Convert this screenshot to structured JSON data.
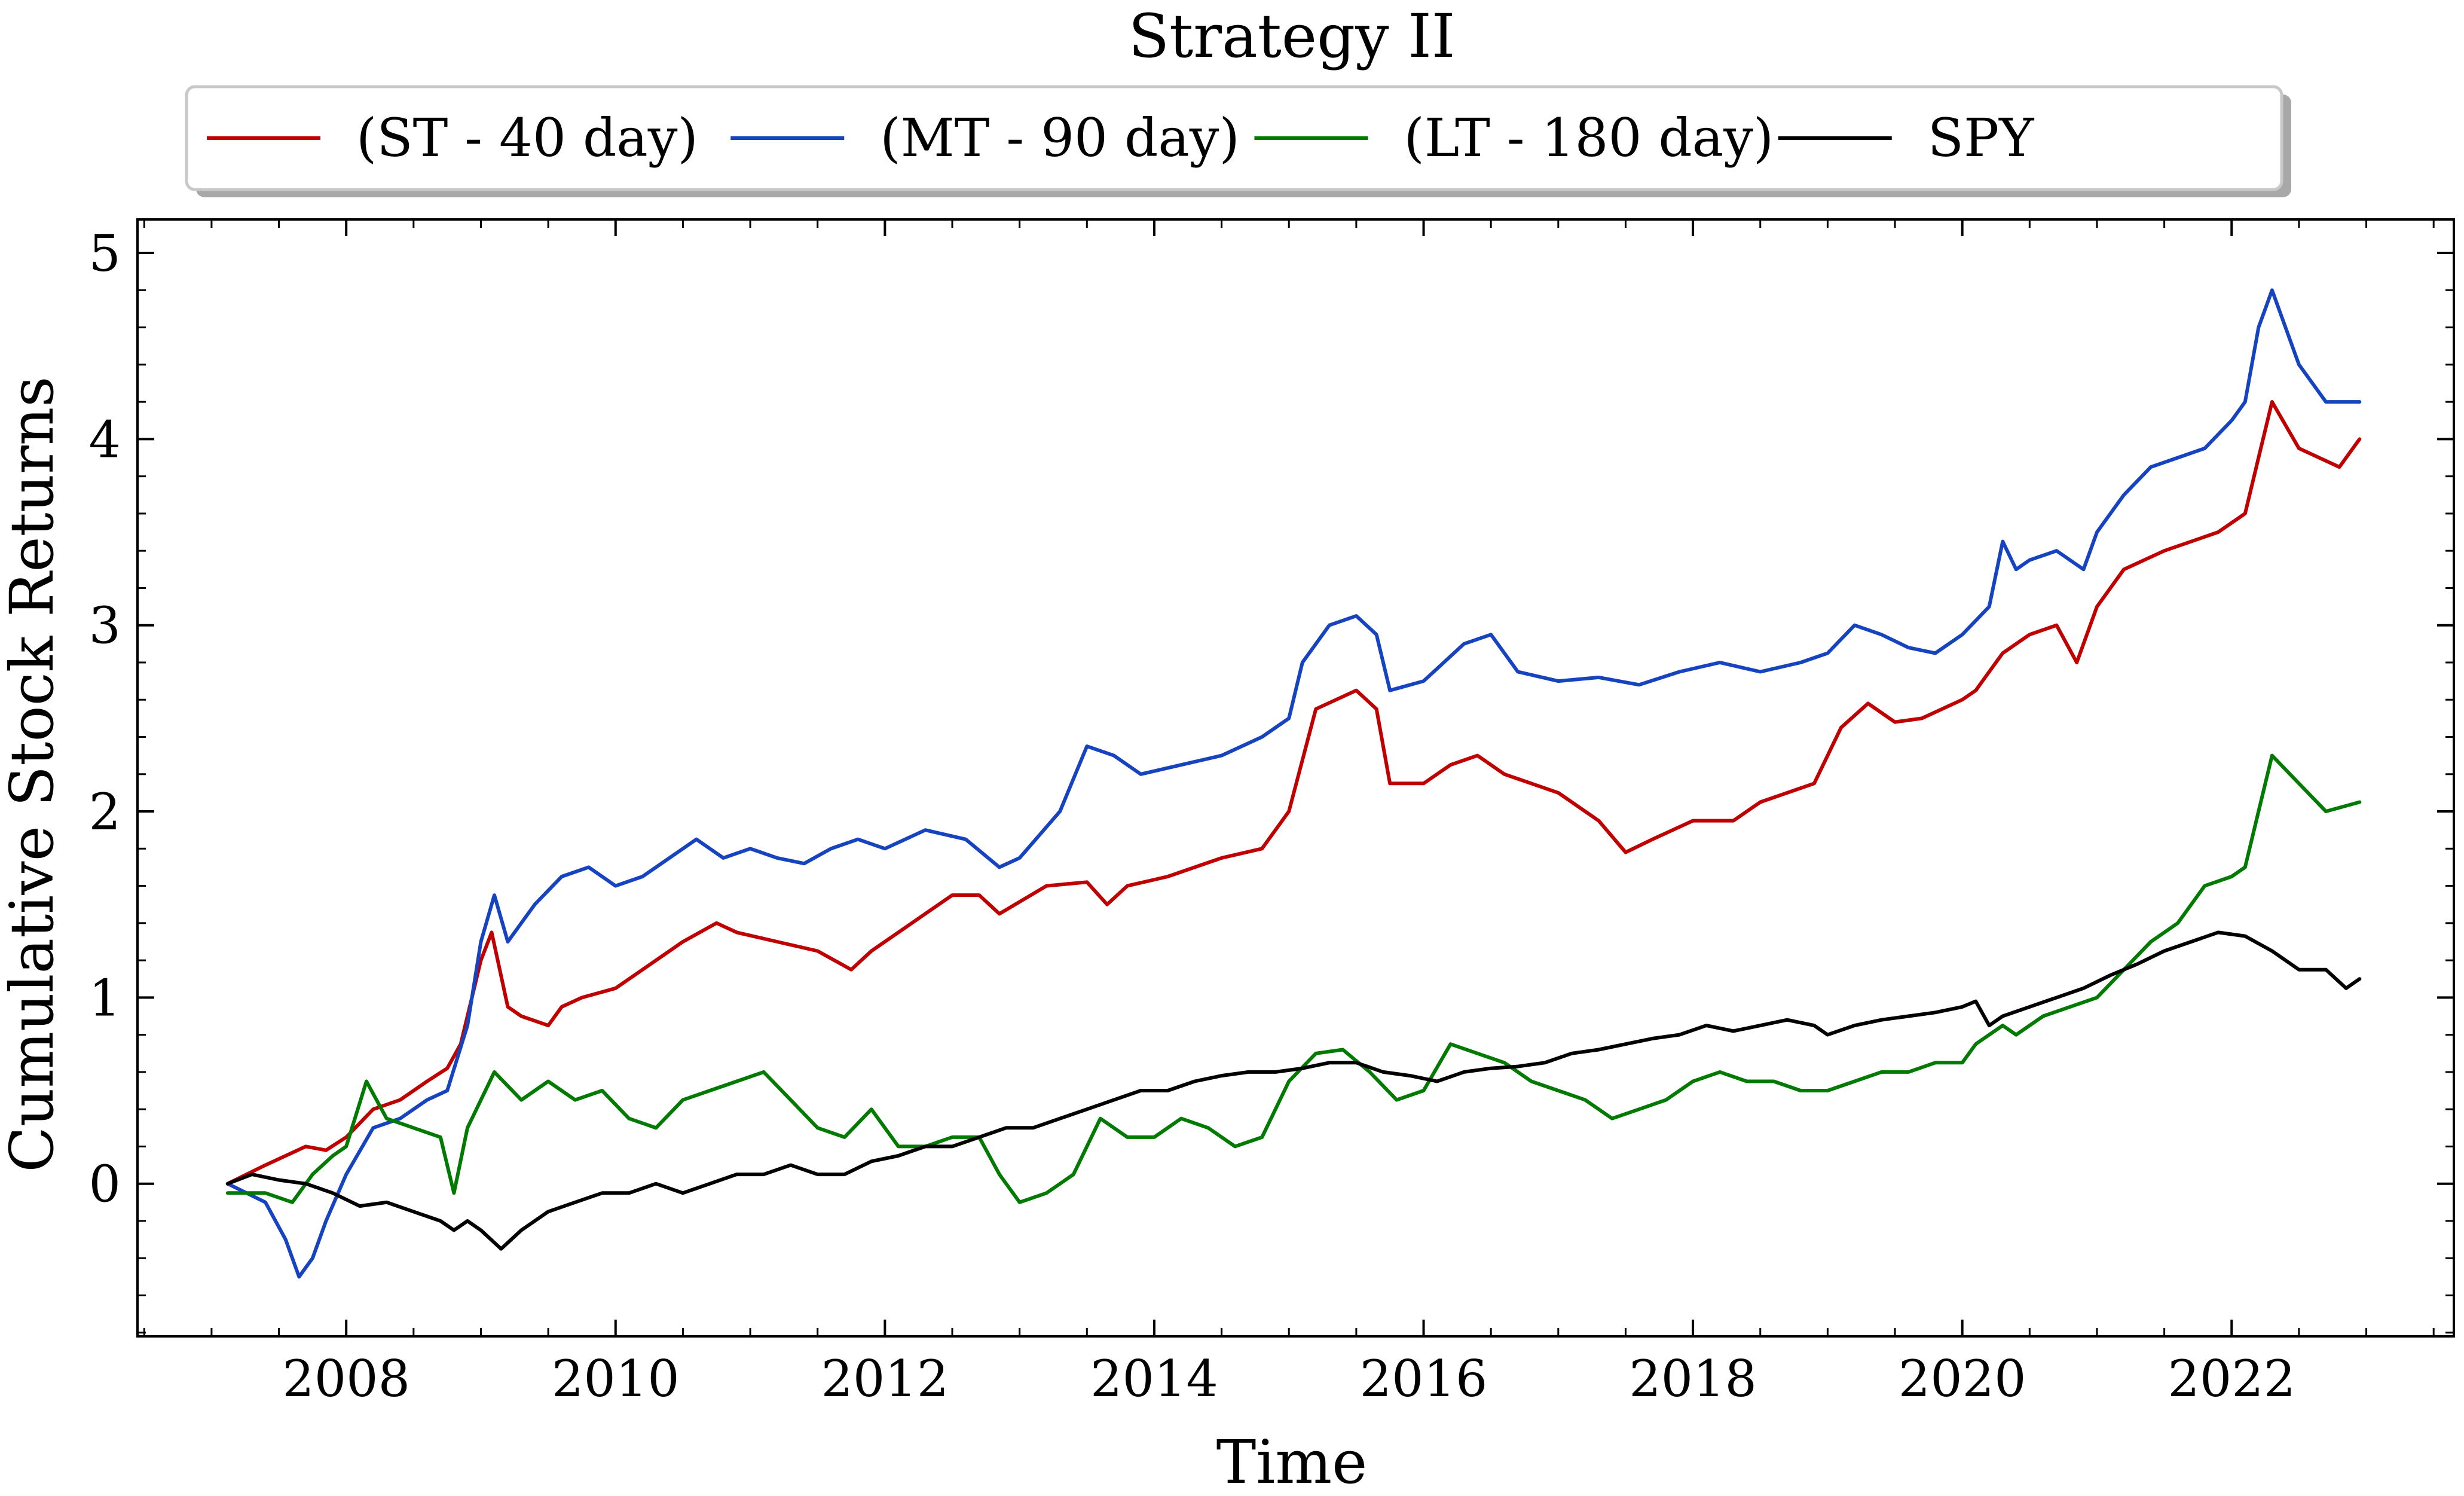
{
  "chart_data": {
    "type": "line",
    "title": "Strategy II",
    "xlabel": "Time",
    "ylabel": "Cumulative Stock Returns",
    "xlim": [
      2006.45,
      2023.65
    ],
    "ylim": [
      -0.82,
      5.18
    ],
    "x_ticks": [
      2008,
      2010,
      2012,
      2014,
      2016,
      2018,
      2020,
      2022
    ],
    "x_tick_labels": [
      "2008",
      "2010",
      "2012",
      "2014",
      "2016",
      "2018",
      "2020",
      "2022"
    ],
    "y_ticks": [
      0,
      1,
      2,
      3,
      4,
      5
    ],
    "y_tick_labels": [
      "0",
      "1",
      "2",
      "3",
      "4",
      "5"
    ],
    "legend": {
      "placement": "top-center, outside plot",
      "columns": 4,
      "shadow": true
    },
    "grid": false,
    "series": [
      {
        "name": "(ST - 40 day)",
        "color": "#c00000",
        "x": [
          2007.12,
          2007.4,
          2007.55,
          2007.7,
          2007.85,
          2008.0,
          2008.2,
          2008.4,
          2008.6,
          2008.75,
          2008.85,
          2009.0,
          2009.08,
          2009.2,
          2009.3,
          2009.5,
          2009.6,
          2009.75,
          2010.0,
          2010.3,
          2010.5,
          2010.75,
          2010.9,
          2011.2,
          2011.5,
          2011.75,
          2011.9,
          2012.2,
          2012.5,
          2012.7,
          2012.85,
          2013.2,
          2013.5,
          2013.65,
          2013.8,
          2014.1,
          2014.5,
          2014.8,
          2015.0,
          2015.2,
          2015.5,
          2015.65,
          2015.75,
          2016.0,
          2016.2,
          2016.4,
          2016.6,
          2017.0,
          2017.3,
          2017.5,
          2017.7,
          2018.0,
          2018.3,
          2018.5,
          2018.9,
          2019.1,
          2019.3,
          2019.5,
          2019.7,
          2020.0,
          2020.1,
          2020.2,
          2020.3,
          2020.4,
          2020.5,
          2020.7,
          2020.85,
          2021.0,
          2021.2,
          2021.5,
          2021.9,
          2022.1,
          2022.2,
          2022.3,
          2022.5,
          2022.8,
          2022.95
        ],
        "y": [
          0.0,
          0.1,
          0.15,
          0.2,
          0.18,
          0.25,
          0.4,
          0.45,
          0.55,
          0.62,
          0.75,
          1.2,
          1.35,
          0.95,
          0.9,
          0.85,
          0.95,
          1.0,
          1.05,
          1.2,
          1.3,
          1.4,
          1.35,
          1.3,
          1.25,
          1.15,
          1.25,
          1.4,
          1.55,
          1.55,
          1.45,
          1.6,
          1.62,
          1.5,
          1.6,
          1.65,
          1.75,
          1.8,
          2.0,
          2.55,
          2.65,
          2.55,
          2.15,
          2.15,
          2.25,
          2.3,
          2.2,
          2.1,
          1.95,
          1.78,
          1.85,
          1.95,
          1.95,
          2.05,
          2.15,
          2.45,
          2.58,
          2.48,
          2.5,
          2.6,
          2.65,
          2.75,
          2.85,
          2.9,
          2.95,
          3.0,
          2.8,
          3.1,
          3.3,
          3.4,
          3.5,
          3.6,
          3.9,
          4.2,
          3.95,
          3.85,
          4.0
        ]
      },
      {
        "name": "(MT - 90 day)",
        "color": "#1644c0",
        "x": [
          2007.12,
          2007.4,
          2007.55,
          2007.65,
          2007.75,
          2007.85,
          2008.0,
          2008.2,
          2008.4,
          2008.6,
          2008.75,
          2008.9,
          2009.0,
          2009.1,
          2009.2,
          2009.4,
          2009.6,
          2009.8,
          2010.0,
          2010.2,
          2010.4,
          2010.6,
          2010.8,
          2011.0,
          2011.2,
          2011.4,
          2011.6,
          2011.8,
          2012.0,
          2012.3,
          2012.6,
          2012.85,
          2013.0,
          2013.3,
          2013.5,
          2013.7,
          2013.9,
          2014.2,
          2014.5,
          2014.8,
          2015.0,
          2015.1,
          2015.3,
          2015.5,
          2015.65,
          2015.75,
          2016.0,
          2016.3,
          2016.5,
          2016.7,
          2017.0,
          2017.3,
          2017.6,
          2017.9,
          2018.2,
          2018.5,
          2018.8,
          2019.0,
          2019.2,
          2019.4,
          2019.6,
          2019.8,
          2020.0,
          2020.2,
          2020.3,
          2020.4,
          2020.5,
          2020.7,
          2020.9,
          2021.0,
          2021.2,
          2021.4,
          2021.6,
          2021.8,
          2022.0,
          2022.1,
          2022.2,
          2022.3,
          2022.5,
          2022.7,
          2022.95
        ],
        "y": [
          0.0,
          -0.1,
          -0.3,
          -0.5,
          -0.4,
          -0.2,
          0.05,
          0.3,
          0.35,
          0.45,
          0.5,
          0.85,
          1.3,
          1.55,
          1.3,
          1.5,
          1.65,
          1.7,
          1.6,
          1.65,
          1.75,
          1.85,
          1.75,
          1.8,
          1.75,
          1.72,
          1.8,
          1.85,
          1.8,
          1.9,
          1.85,
          1.7,
          1.75,
          2.0,
          2.35,
          2.3,
          2.2,
          2.25,
          2.3,
          2.4,
          2.5,
          2.8,
          3.0,
          3.05,
          2.95,
          2.65,
          2.7,
          2.9,
          2.95,
          2.75,
          2.7,
          2.72,
          2.68,
          2.75,
          2.8,
          2.75,
          2.8,
          2.85,
          3.0,
          2.95,
          2.88,
          2.85,
          2.95,
          3.1,
          3.45,
          3.3,
          3.35,
          3.4,
          3.3,
          3.5,
          3.7,
          3.85,
          3.9,
          3.95,
          4.1,
          4.2,
          4.6,
          4.8,
          4.4,
          4.2,
          4.2
        ]
      },
      {
        "name": "(LT - 180 day)",
        "color": "#007a00",
        "x": [
          2007.12,
          2007.4,
          2007.6,
          2007.75,
          2007.9,
          2008.0,
          2008.15,
          2008.3,
          2008.5,
          2008.7,
          2008.8,
          2008.9,
          2009.1,
          2009.3,
          2009.5,
          2009.7,
          2009.9,
          2010.1,
          2010.3,
          2010.5,
          2010.7,
          2010.9,
          2011.1,
          2011.3,
          2011.5,
          2011.7,
          2011.9,
          2012.1,
          2012.3,
          2012.5,
          2012.7,
          2012.85,
          2013.0,
          2013.2,
          2013.4,
          2013.6,
          2013.8,
          2014.0,
          2014.2,
          2014.4,
          2014.6,
          2014.8,
          2015.0,
          2015.2,
          2015.4,
          2015.6,
          2015.8,
          2016.0,
          2016.2,
          2016.4,
          2016.6,
          2016.8,
          2017.0,
          2017.2,
          2017.4,
          2017.6,
          2017.8,
          2018.0,
          2018.2,
          2018.4,
          2018.6,
          2018.8,
          2019.0,
          2019.2,
          2019.4,
          2019.6,
          2019.8,
          2020.0,
          2020.1,
          2020.2,
          2020.3,
          2020.4,
          2020.6,
          2020.8,
          2021.0,
          2021.2,
          2021.4,
          2021.6,
          2021.8,
          2022.0,
          2022.1,
          2022.2,
          2022.3,
          2022.5,
          2022.7,
          2022.95
        ],
        "y": [
          -0.05,
          -0.05,
          -0.1,
          0.05,
          0.15,
          0.2,
          0.55,
          0.35,
          0.3,
          0.25,
          -0.05,
          0.3,
          0.6,
          0.45,
          0.55,
          0.45,
          0.5,
          0.35,
          0.3,
          0.45,
          0.5,
          0.55,
          0.6,
          0.45,
          0.3,
          0.25,
          0.4,
          0.2,
          0.2,
          0.25,
          0.25,
          0.05,
          -0.1,
          -0.05,
          0.05,
          0.35,
          0.25,
          0.25,
          0.35,
          0.3,
          0.2,
          0.25,
          0.55,
          0.7,
          0.72,
          0.6,
          0.45,
          0.5,
          0.75,
          0.7,
          0.65,
          0.55,
          0.5,
          0.45,
          0.35,
          0.4,
          0.45,
          0.55,
          0.6,
          0.55,
          0.55,
          0.5,
          0.5,
          0.55,
          0.6,
          0.6,
          0.65,
          0.65,
          0.75,
          0.8,
          0.85,
          0.8,
          0.9,
          0.95,
          1.0,
          1.15,
          1.3,
          1.4,
          1.6,
          1.65,
          1.7,
          2.0,
          2.3,
          2.15,
          2.0,
          2.05
        ]
      },
      {
        "name": "SPY",
        "color": "#000000",
        "x": [
          2007.12,
          2007.3,
          2007.5,
          2007.7,
          2007.9,
          2008.1,
          2008.3,
          2008.5,
          2008.7,
          2008.8,
          2008.9,
          2009.0,
          2009.15,
          2009.3,
          2009.5,
          2009.7,
          2009.9,
          2010.1,
          2010.3,
          2010.5,
          2010.7,
          2010.9,
          2011.1,
          2011.3,
          2011.5,
          2011.7,
          2011.9,
          2012.1,
          2012.3,
          2012.5,
          2012.7,
          2012.9,
          2013.1,
          2013.3,
          2013.5,
          2013.7,
          2013.9,
          2014.1,
          2014.3,
          2014.5,
          2014.7,
          2014.9,
          2015.1,
          2015.3,
          2015.5,
          2015.7,
          2015.9,
          2016.1,
          2016.3,
          2016.5,
          2016.7,
          2016.9,
          2017.1,
          2017.3,
          2017.5,
          2017.7,
          2017.9,
          2018.1,
          2018.3,
          2018.5,
          2018.7,
          2018.9,
          2019.0,
          2019.2,
          2019.4,
          2019.6,
          2019.8,
          2020.0,
          2020.1,
          2020.2,
          2020.3,
          2020.5,
          2020.7,
          2020.9,
          2021.1,
          2021.3,
          2021.5,
          2021.7,
          2021.9,
          2022.1,
          2022.3,
          2022.5,
          2022.7,
          2022.85,
          2022.95
        ],
        "y": [
          0.0,
          0.05,
          0.02,
          0.0,
          -0.05,
          -0.12,
          -0.1,
          -0.15,
          -0.2,
          -0.25,
          -0.2,
          -0.25,
          -0.35,
          -0.25,
          -0.15,
          -0.1,
          -0.05,
          -0.05,
          0.0,
          -0.05,
          0.0,
          0.05,
          0.05,
          0.1,
          0.05,
          0.05,
          0.12,
          0.15,
          0.2,
          0.2,
          0.25,
          0.3,
          0.3,
          0.35,
          0.4,
          0.45,
          0.5,
          0.5,
          0.55,
          0.58,
          0.6,
          0.6,
          0.62,
          0.65,
          0.65,
          0.6,
          0.58,
          0.55,
          0.6,
          0.62,
          0.63,
          0.65,
          0.7,
          0.72,
          0.75,
          0.78,
          0.8,
          0.85,
          0.82,
          0.85,
          0.88,
          0.85,
          0.8,
          0.85,
          0.88,
          0.9,
          0.92,
          0.95,
          0.98,
          0.85,
          0.9,
          0.95,
          1.0,
          1.05,
          1.12,
          1.18,
          1.25,
          1.3,
          1.35,
          1.33,
          1.25,
          1.15,
          1.15,
          1.05,
          1.1
        ]
      }
    ]
  }
}
